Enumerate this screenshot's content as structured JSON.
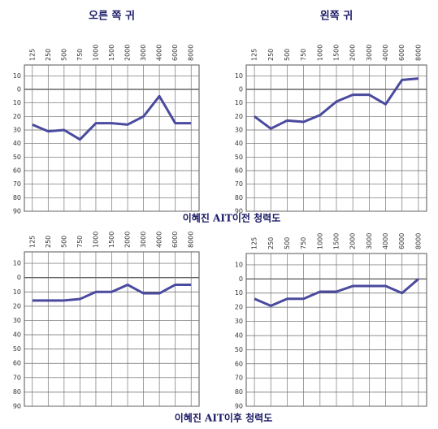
{
  "chart_data": [
    {
      "type": "line",
      "title": "오른 쪽 귀",
      "categories": [
        "125",
        "250",
        "500",
        "750",
        "1000",
        "1500",
        "2000",
        "3000",
        "4000",
        "6000",
        "8000"
      ],
      "values": [
        26,
        31,
        30,
        37,
        25,
        25,
        26,
        20,
        5,
        25,
        25
      ],
      "color": "#4a4a9e",
      "ylim": [
        -18,
        90
      ],
      "yticks": [
        {
          "value": -10,
          "label": "10"
        },
        0,
        10,
        20,
        30,
        40,
        50,
        60,
        70,
        80,
        90
      ],
      "grid": true,
      "y_inverted": true
    },
    {
      "type": "line",
      "title": "왼쪽 귀",
      "categories": [
        "125",
        "250",
        "500",
        "750",
        "1000",
        "1500",
        "2000",
        "3000",
        "4000",
        "6000",
        "8000"
      ],
      "values": [
        20,
        29,
        23,
        24,
        19,
        9,
        4,
        4,
        11,
        -7,
        -8
      ],
      "color": "#4a4a9e",
      "ylim": [
        -18,
        90
      ],
      "yticks": [
        {
          "value": -10,
          "label": "10"
        },
        0,
        10,
        20,
        30,
        40,
        50,
        60,
        70,
        80,
        90
      ],
      "grid": true,
      "y_inverted": true
    },
    {
      "type": "line",
      "categories": [
        "125",
        "250",
        "500",
        "750",
        "1000",
        "1500",
        "2000",
        "3000",
        "4000",
        "6000",
        "8000"
      ],
      "values": [
        16,
        16,
        16,
        15,
        10,
        10,
        5,
        11,
        11,
        5,
        5
      ],
      "color": "#4a4a9e",
      "ylim": [
        -18,
        90
      ],
      "yticks": [
        {
          "value": -10,
          "label": "10"
        },
        0,
        10,
        20,
        30,
        40,
        50,
        60,
        70,
        80,
        90
      ],
      "grid": true,
      "y_inverted": true
    },
    {
      "type": "line",
      "categories": [
        "125",
        "250",
        "500",
        "750",
        "1000",
        "1500",
        "2000",
        "3000",
        "4000",
        "6000",
        "8000"
      ],
      "values": [
        14,
        19,
        14,
        14,
        9,
        9,
        5,
        5,
        5,
        10,
        0
      ],
      "color": "#4a4a9e",
      "ylim": [
        -18,
        90
      ],
      "yticks": [
        {
          "value": -10,
          "label": "10"
        },
        0,
        10,
        20,
        30,
        40,
        50,
        60,
        70,
        80,
        90
      ],
      "grid": true,
      "y_inverted": true
    }
  ],
  "captions": [
    "이혜진 AIT이전 청력도",
    "이혜진 AIT이후 청력도"
  ]
}
